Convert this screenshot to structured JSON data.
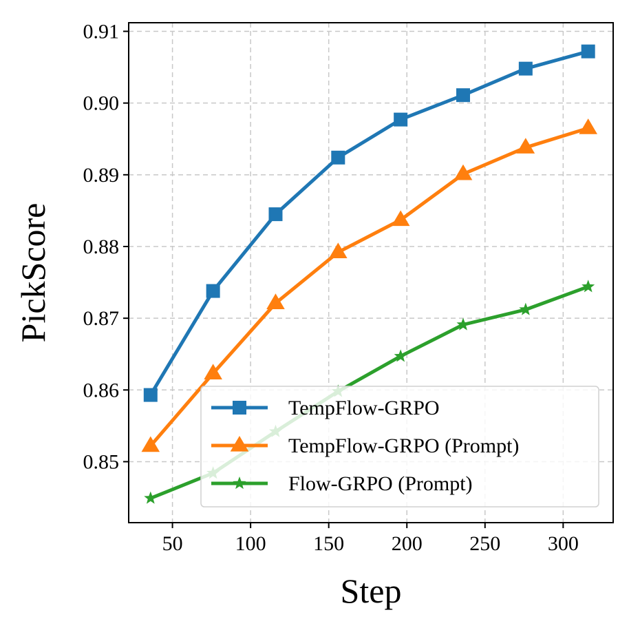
{
  "chart_data": {
    "type": "line",
    "title": "",
    "xlabel": "Step",
    "ylabel": "PickScore",
    "xlim": [
      22,
      332
    ],
    "ylim": [
      0.8415,
      0.9112
    ],
    "xticks": [
      50,
      100,
      150,
      200,
      250,
      300
    ],
    "yticks": [
      0.85,
      0.86,
      0.87,
      0.88,
      0.89,
      0.9,
      0.91
    ],
    "ytick_labels": [
      "0.85",
      "0.86",
      "0.87",
      "0.88",
      "0.89",
      "0.90",
      "0.91"
    ],
    "grid": true,
    "legend_position": "lower-right",
    "x": [
      36,
      76,
      116,
      156,
      196,
      236,
      276,
      316
    ],
    "series": [
      {
        "name": "TempFlow-GRPO",
        "color": "#1f77b4",
        "marker": "square",
        "values": [
          0.8593,
          0.8738,
          0.8845,
          0.8924,
          0.8977,
          0.9011,
          0.9048,
          0.9072
        ]
      },
      {
        "name": "TempFlow-GRPO (Prompt)",
        "color": "#ff7f0e",
        "marker": "triangle",
        "values": [
          0.8522,
          0.8623,
          0.8721,
          0.8792,
          0.8837,
          0.8901,
          0.8938,
          0.8965
        ]
      },
      {
        "name": "Flow-GRPO (Prompt)",
        "color": "#2ca02c",
        "marker": "star",
        "values": [
          0.8449,
          0.8484,
          0.8542,
          0.8598,
          0.8647,
          0.8691,
          0.8712,
          0.8744
        ]
      }
    ]
  }
}
